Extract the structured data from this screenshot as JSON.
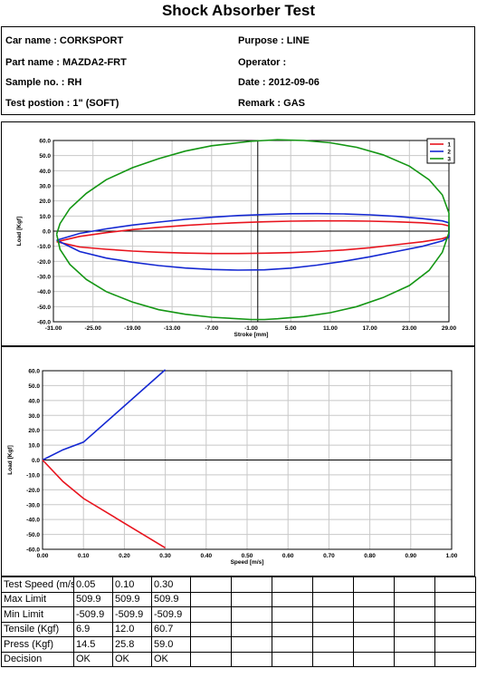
{
  "title": "Shock Absorber Test",
  "info": {
    "car_name": "Car name : CORKSPORT",
    "part_name": "Part name : MAZDA2-FRT",
    "sample_no": "Sample no. : RH",
    "test_position": "Test postion : 1\" (SOFT)",
    "purpose": "Purpose : LINE",
    "operator": "Operator :",
    "date": "Date : 2012-09-06",
    "remark": "Remark : GAS"
  },
  "chart_data": [
    {
      "type": "line",
      "title": "",
      "xlabel": "Stroke [mm]",
      "ylabel": "Load [Kgf]",
      "xlim": [
        -31,
        29
      ],
      "ylim": [
        -60,
        60
      ],
      "xticks": [
        "-31.00",
        "-25.00",
        "-19.00",
        "-13.00",
        "-7.00",
        "-1.00",
        "5.00",
        "11.00",
        "17.00",
        "23.00",
        "29.00"
      ],
      "yticks": [
        "60.0",
        "50.0",
        "40.0",
        "30.0",
        "20.0",
        "10.0",
        "0.0",
        "-10.0",
        "-20.0",
        "-30.0",
        "-40.0",
        "-50.0",
        "-60.0"
      ],
      "grid": true,
      "legend_position": "top-right",
      "series": [
        {
          "name": "1",
          "color": "#e8141e",
          "x": [
            -30.5,
            -27,
            -23,
            -19,
            -15,
            -11,
            -7,
            -3,
            1,
            5,
            9,
            13,
            17,
            21,
            25,
            28,
            29,
            29,
            28,
            25,
            21,
            17,
            13,
            9,
            5,
            1,
            -3,
            -7,
            -11,
            -15,
            -19,
            -23,
            -27,
            -30.5
          ],
          "y": [
            -7,
            -3.5,
            -1,
            1,
            2.5,
            3.8,
            4.8,
            5.6,
            6.2,
            6.6,
            6.8,
            6.8,
            6.6,
            6.2,
            5.5,
            4.5,
            3.5,
            -3.5,
            -5,
            -7,
            -9,
            -11,
            -12.5,
            -13.5,
            -14.2,
            -14.6,
            -14.8,
            -14.8,
            -14.5,
            -14,
            -13.2,
            -12,
            -10.5,
            -7
          ]
        },
        {
          "name": "2",
          "color": "#1428d2",
          "x": [
            -30.5,
            -27,
            -23,
            -19,
            -15,
            -11,
            -7,
            -3,
            1,
            5,
            9,
            13,
            17,
            21,
            25,
            28,
            29,
            29,
            28,
            25,
            21,
            17,
            13,
            9,
            5,
            1,
            -3,
            -7,
            -11,
            -15,
            -19,
            -23,
            -27,
            -30.5
          ],
          "y": [
            -6,
            -1.5,
            1.5,
            4,
            6,
            7.8,
            9.2,
            10.3,
            11,
            11.5,
            11.6,
            11.4,
            10.8,
            9.8,
            8.3,
            6.8,
            5.5,
            -4,
            -6.5,
            -10,
            -13.5,
            -17,
            -20,
            -22.5,
            -24.5,
            -25.6,
            -25.8,
            -25.4,
            -24.4,
            -22.8,
            -20.6,
            -17.8,
            -13.5,
            -6
          ]
        },
        {
          "name": "3",
          "color": "#149614",
          "x": [
            -30.5,
            -30,
            -28.5,
            -26,
            -23,
            -19,
            -15,
            -11,
            -7,
            -3,
            -1,
            1,
            3,
            7,
            11,
            15,
            19,
            23,
            26,
            28,
            29,
            29,
            28,
            26,
            23,
            19,
            15,
            11,
            7,
            3,
            1,
            -1,
            -3,
            -7,
            -11,
            -15,
            -19,
            -23,
            -26,
            -28.5,
            -30,
            -30.5
          ],
          "y": [
            -2,
            5,
            15,
            25,
            34,
            42,
            48,
            53,
            56.5,
            58.5,
            59.5,
            60,
            60.5,
            60,
            58.5,
            55.5,
            50.5,
            43,
            34,
            24,
            12,
            -1,
            -14,
            -26,
            -36,
            -44,
            -50,
            -54,
            -56.5,
            -58,
            -58.5,
            -58.5,
            -58,
            -57,
            -55,
            -52,
            -47,
            -40,
            -32,
            -22,
            -12,
            -2
          ]
        }
      ]
    },
    {
      "type": "line",
      "title": "",
      "xlabel": "Speed [m/s]",
      "ylabel": "Load [Kgf]",
      "xlim": [
        0,
        1
      ],
      "ylim": [
        -60,
        60
      ],
      "xticks": [
        "0.00",
        "0.10",
        "0.20",
        "0.30",
        "0.40",
        "0.50",
        "0.60",
        "0.70",
        "0.80",
        "0.90",
        "1.00"
      ],
      "yticks": [
        "60.0",
        "50.0",
        "40.0",
        "30.0",
        "20.0",
        "10.0",
        "0.0",
        "-10.0",
        "-20.0",
        "-30.0",
        "-40.0",
        "-50.0",
        "-60.0"
      ],
      "grid": true,
      "series": [
        {
          "color": "#1428d2",
          "x": [
            0,
            0.05,
            0.1,
            0.3
          ],
          "y": [
            0,
            6.9,
            12.0,
            60.7
          ]
        },
        {
          "color": "#e8141e",
          "x": [
            0,
            0.05,
            0.1,
            0.3
          ],
          "y": [
            0,
            -14.5,
            -25.8,
            -59.0
          ]
        }
      ]
    }
  ],
  "table": {
    "rows": [
      [
        "Test Speed (m/s)",
        "0.05",
        "0.10",
        "0.30"
      ],
      [
        "Max Limit",
        "509.9",
        "509.9",
        "509.9"
      ],
      [
        "Min Limit",
        "-509.9",
        "-509.9",
        "-509.9"
      ],
      [
        "Tensile (Kgf)",
        "6.9",
        "12.0",
        "60.7"
      ],
      [
        "Press (Kgf)",
        "14.5",
        "25.8",
        "59.0"
      ],
      [
        "Decision",
        "OK",
        "OK",
        "OK"
      ]
    ],
    "empty_columns": 7
  }
}
